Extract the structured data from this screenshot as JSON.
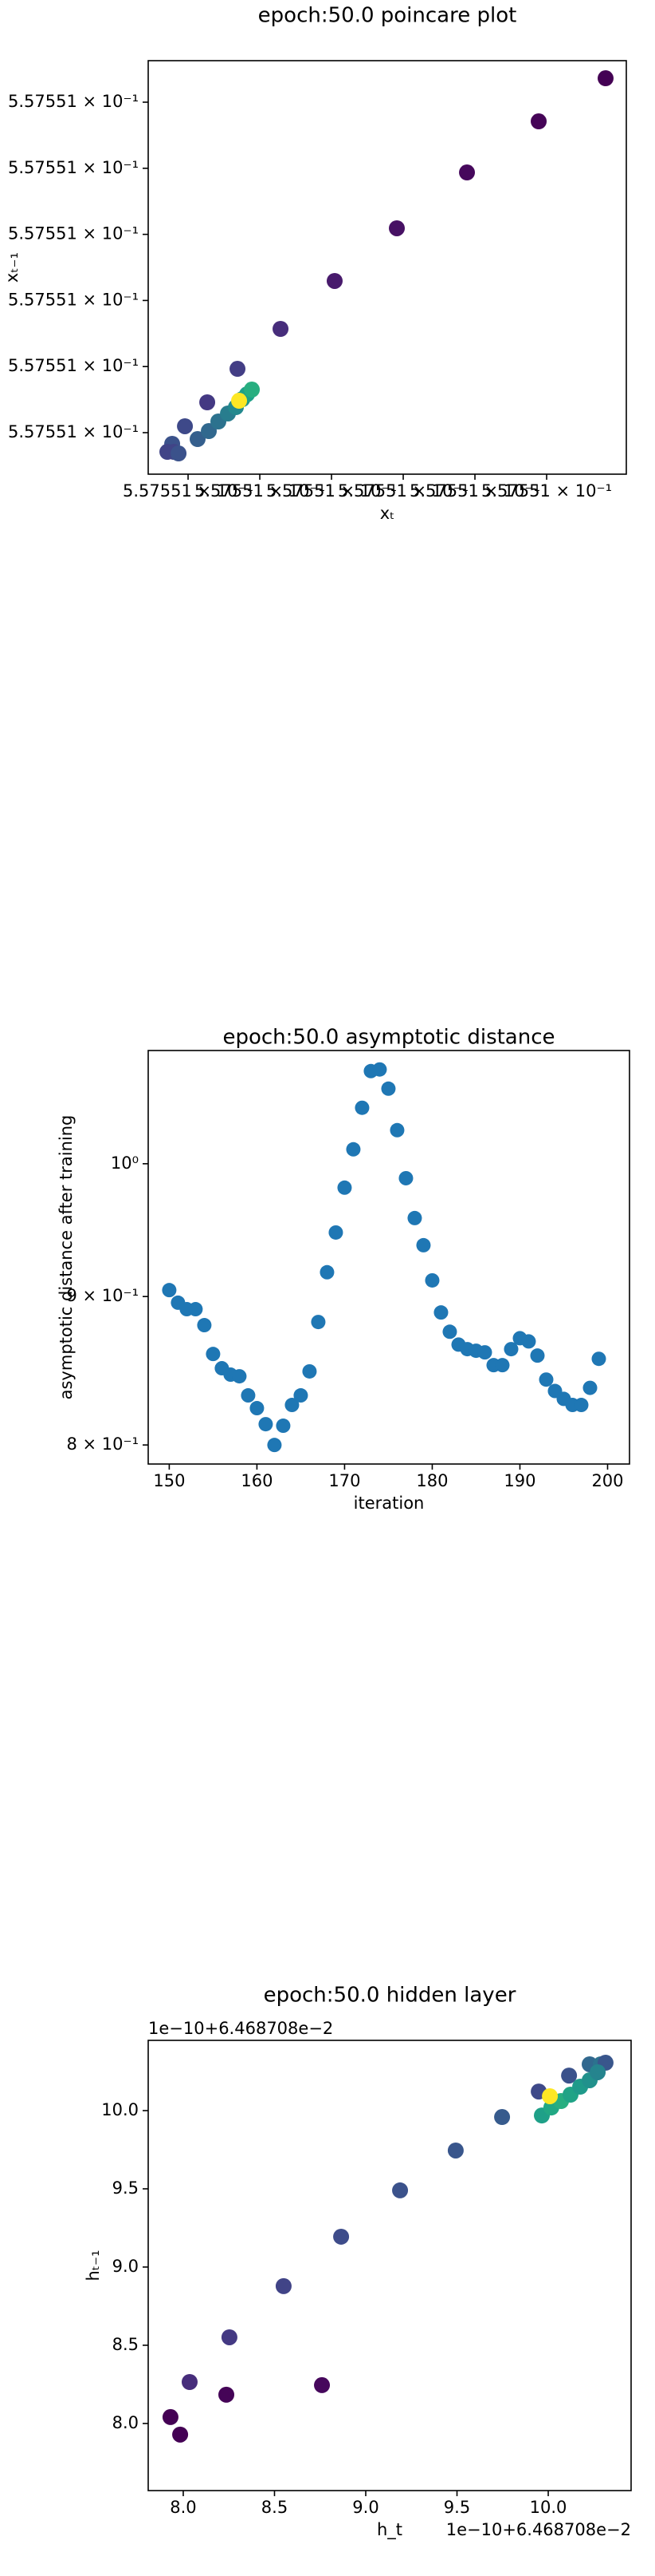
{
  "chart_data": [
    {
      "type": "scatter",
      "title": "epoch:50.0 poincare plot",
      "x_label": "xₜ",
      "y_label": "xₜ₋₁",
      "x": [
        0.55755105822,
        0.55755104889,
        0.55755103889,
        0.55755102911,
        0.55755102044,
        0.55755101289,
        0.55755100689,
        0.55755100267,
        0.55755099956,
        0.55755099778,
        0.557550998,
        0.55755100133,
        0.55755100289,
        0.55755100422,
        0.55755100556,
        0.55755100667,
        0.55755100756,
        0.55755100822,
        0.55755100889,
        0.55755099711,
        0.55755099867,
        0.55755100711
      ],
      "values": [
        0.55755105362,
        0.5575510471,
        0.55755103937,
        0.55755103092,
        0.55755102295,
        0.5575510157,
        0.55755100966,
        0.55755100459,
        0.55755100097,
        0.55755099831,
        0.5575509971,
        0.55755099903,
        0.55755100024,
        0.55755100169,
        0.5575510029,
        0.55755100386,
        0.55755100507,
        0.5575510058,
        0.55755100652,
        0.5575509971,
        0.55755099686,
        0.55755100483
      ],
      "colors": [
        "#440154",
        "#450457",
        "#46085c",
        "#471164",
        "#481a6c",
        "#472d7b",
        "#433e85",
        "#443983",
        "#3e4989",
        "#3b528b",
        "#414487",
        "#355f8d",
        "#31688e",
        "#2c728e",
        "#287d8e",
        "#23898e",
        "#20928c",
        "#1fa088",
        "#28ae80",
        "#414487",
        "#3b528b",
        "#fde725"
      ],
      "xlim": [
        0.55755099444,
        0.55755106111
      ],
      "ylim": [
        0.55755099372,
        0.55755105628
      ],
      "xticks": [
        {
          "value": 0.557551,
          "label": "5.57551 × 10⁻¹"
        },
        {
          "value": 0.55755101,
          "label": "5.57551 × 10⁻¹"
        },
        {
          "value": 0.55755102,
          "label": "5.57551 × 10⁻¹"
        },
        {
          "value": 0.55755103,
          "label": "5.57551 × 10⁻¹"
        },
        {
          "value": 0.55755104,
          "label": "5.57551 × 10⁻¹"
        },
        {
          "value": 0.55755105,
          "label": "5.57551 × 10⁻¹"
        }
      ],
      "yticks": [
        {
          "value": 0.557551,
          "label": "5.57551 × 10⁻¹"
        },
        {
          "value": 0.55755101,
          "label": "5.57551 × 10⁻¹"
        },
        {
          "value": 0.55755102,
          "label": "5.57551 × 10⁻¹"
        },
        {
          "value": 0.55755103,
          "label": "5.57551 × 10⁻¹"
        },
        {
          "value": 0.55755104,
          "label": "5.57551 × 10⁻¹"
        },
        {
          "value": 0.55755105,
          "label": "5.57551 × 10⁻¹"
        }
      ]
    },
    {
      "type": "scatter",
      "title": "epoch:50.0 asymptotic distance",
      "x_label": "iteration",
      "y_label": "asymptotic distance after training",
      "x": [
        150,
        151,
        152,
        153,
        154,
        155,
        156,
        157,
        158,
        159,
        160,
        161,
        162,
        163,
        164,
        165,
        166,
        167,
        168,
        169,
        170,
        171,
        172,
        173,
        174,
        175,
        176,
        177,
        178,
        179,
        180,
        181,
        182,
        183,
        184,
        185,
        186,
        187,
        188,
        189,
        190,
        191,
        192,
        193,
        194,
        195,
        196,
        197,
        198,
        199
      ],
      "values": [
        0.9046,
        0.8956,
        0.891,
        0.891,
        0.8798,
        0.8599,
        0.8502,
        0.8459,
        0.8448,
        0.8321,
        0.8237,
        0.8133,
        0.8,
        0.8123,
        0.8258,
        0.8321,
        0.8481,
        0.882,
        0.9175,
        0.9469,
        0.9812,
        1.0115,
        1.0454,
        1.0763,
        1.0777,
        1.0614,
        1.027,
        0.9886,
        0.9578,
        0.9374,
        0.9116,
        0.8887,
        0.8752,
        0.8663,
        0.8632,
        0.8621,
        0.861,
        0.8523,
        0.8523,
        0.8632,
        0.8707,
        0.8685,
        0.8588,
        0.8426,
        0.835,
        0.8298,
        0.8258,
        0.8258,
        0.8371,
        0.8566
      ],
      "color": "#1f77b4",
      "log_y": true,
      "xlim": [
        147.6,
        202.5
      ],
      "ylim": [
        0.788,
        1.094
      ],
      "xticks": [
        150,
        160,
        170,
        180,
        190,
        200
      ],
      "yticks": [
        {
          "value": 0.8,
          "label": "8 × 10⁻¹"
        },
        {
          "value": 0.9,
          "label": "9 × 10⁻¹"
        },
        {
          "value": 1,
          "label": "10⁰"
        }
      ]
    },
    {
      "type": "scatter",
      "title": "epoch:50.0 hidden layer",
      "x_label": "h_t",
      "y_label": "hₜ₋₁",
      "x_offset_text": "1e−10+6.468708e−2",
      "y_offset_text": "1e−10+6.468708e−2",
      "x": [
        7.93,
        7.983,
        8.236,
        8.76,
        8.035,
        8.253,
        8.55,
        8.865,
        9.188,
        9.493,
        9.747,
        9.948,
        10.114,
        10.227,
        10.288,
        10.314,
        9.965,
        10.017,
        10.07,
        10.122,
        10.175,
        10.227,
        10.271,
        10.009
      ],
      "values": [
        8.041,
        7.929,
        8.184,
        8.245,
        8.265,
        8.551,
        8.878,
        9.194,
        9.49,
        9.745,
        9.959,
        10.122,
        10.224,
        10.296,
        10.296,
        10.306,
        9.969,
        10.02,
        10.061,
        10.102,
        10.153,
        10.194,
        10.245,
        10.092
      ],
      "colors": [
        "#440154",
        "#440154",
        "#450457",
        "#46085c",
        "#472d7b",
        "#443983",
        "#414487",
        "#3e4c8a",
        "#3b528b",
        "#39568c",
        "#375b8d",
        "#3e4989",
        "#3b528b",
        "#31688e",
        "#2c728e",
        "#39568c",
        "#1fa088",
        "#22a884",
        "#28ae80",
        "#20a386",
        "#1f9a8a",
        "#21918c",
        "#25848e",
        "#fde725"
      ],
      "xlim": [
        7.808,
        10.454
      ],
      "ylim": [
        7.571,
        10.449
      ],
      "xticks": [
        {
          "value": 8,
          "label": "8.0"
        },
        {
          "value": 8.5,
          "label": "8.5"
        },
        {
          "value": 9,
          "label": "9.0"
        },
        {
          "value": 9.5,
          "label": "9.5"
        },
        {
          "value": 10,
          "label": "10.0"
        }
      ],
      "yticks": [
        {
          "value": 8,
          "label": "8.0"
        },
        {
          "value": 8.5,
          "label": "8.5"
        },
        {
          "value": 9,
          "label": "9.0"
        },
        {
          "value": 9.5,
          "label": "9.5"
        },
        {
          "value": 10,
          "label": "10.0"
        }
      ]
    }
  ]
}
